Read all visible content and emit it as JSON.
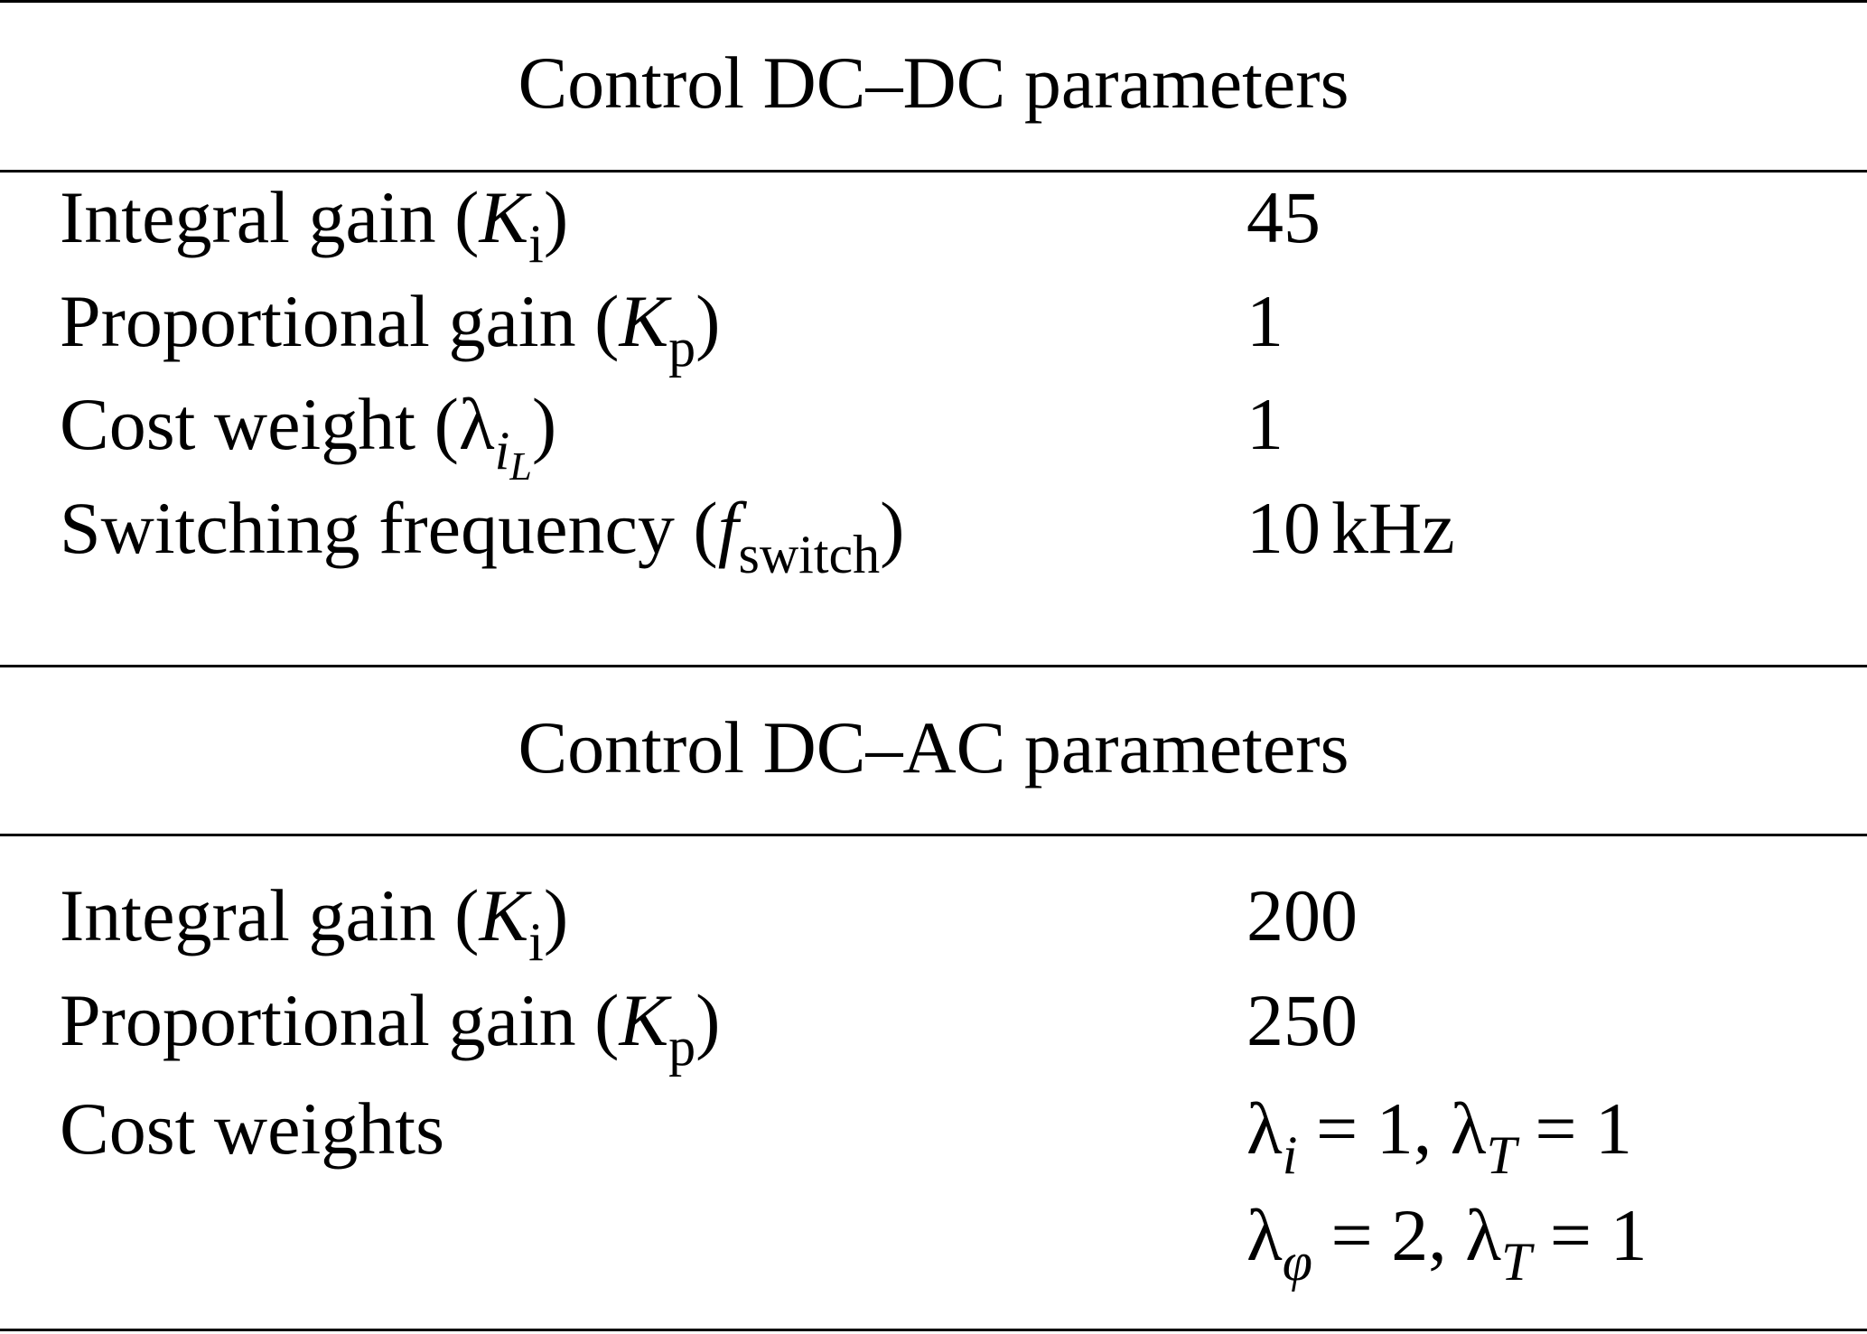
{
  "sections": [
    {
      "title": "Control DC–DC parameters",
      "rows": [
        {
          "label": "Integral gain",
          "symbol": "K",
          "symbol_sub": "i",
          "value": "45"
        },
        {
          "label": "Proportional gain",
          "symbol": "K",
          "symbol_sub": "p",
          "value": "1"
        },
        {
          "label": "Cost weight",
          "symbol": "λ",
          "symbol_sub": "i",
          "symbol_subsub": "L",
          "value": "1"
        },
        {
          "label": "Switching frequency",
          "symbol": "f",
          "symbol_sub": "switch",
          "value_number": "10",
          "value_unit": "kHz"
        }
      ]
    },
    {
      "title": "Control DC–AC parameters",
      "rows": [
        {
          "label": "Integral gain",
          "symbol": "K",
          "symbol_sub": "i",
          "value": "200"
        },
        {
          "label": "Proportional gain",
          "symbol": "K",
          "symbol_sub": "p",
          "value": "250"
        },
        {
          "label": "Cost weights",
          "value_line1": {
            "a_sym": "λ",
            "a_sub": "i",
            "a_val": "1",
            "b_sym": "λ",
            "b_sub": "T",
            "b_val": "1"
          },
          "value_line2": {
            "a_sym": "λ",
            "a_sub": "φ",
            "a_val": "2",
            "b_sym": "λ",
            "b_sub": "T",
            "b_val": "1"
          }
        }
      ]
    }
  ]
}
